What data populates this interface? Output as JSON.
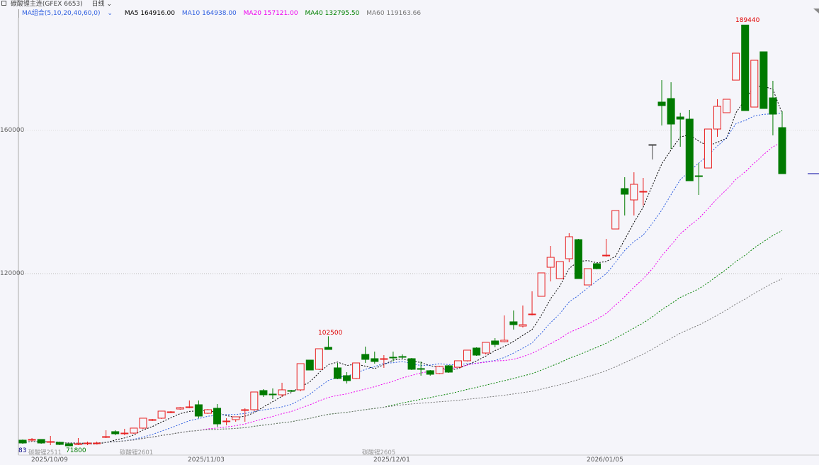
{
  "header": {
    "window_icon": "window-icon",
    "title": "碳酸锂主连(GFEX 6653)",
    "period": "日线",
    "period_dropdown_icon": "chevron-down-icon"
  },
  "indicator": {
    "label": "MA组合(5,10,20,40,60,0)",
    "items": [
      {
        "label": "MA5 164916.00",
        "color": "#000000"
      },
      {
        "label": "MA10 164938.00",
        "color": "#3060e0"
      },
      {
        "label": "MA20 157121.00",
        "color": "#ee00ee"
      },
      {
        "label": "MA40 132795.50",
        "color": "#008000"
      },
      {
        "label": "MA60 119163.66",
        "color": "#777777"
      }
    ]
  },
  "axis": {
    "y_ticks": [
      "160000",
      "120000"
    ],
    "dates": [
      "2025/10/09",
      "2025/11/03",
      "2025/12/01",
      "2026/01/05"
    ],
    "contracts": [
      "碳酸锂2511",
      "碳酸锂2601",
      "碳酸锂2605"
    ],
    "left_count": "83"
  },
  "annotations": {
    "high_label": "189440",
    "mid_high_label": "102500",
    "low_label": "71800"
  },
  "colors": {
    "up": "#e82020",
    "down": "#007a00",
    "flat": "#444444",
    "last_price": "#0000a0"
  },
  "chart_data": {
    "type": "candlestick",
    "title": "碳酸锂主连(GFEX 6653) 日线",
    "ylim": [
      70000,
      197000
    ],
    "y_ticks": [
      120000,
      160000
    ],
    "ma_periods": [
      5,
      10,
      20,
      40,
      60
    ],
    "ohlc": [
      [
        73470,
        73670,
        72480,
        72680
      ],
      [
        73470,
        74060,
        73070,
        73670
      ],
      [
        73670,
        73670,
        72480,
        72680
      ],
      [
        72880,
        74660,
        72080,
        73070
      ],
      [
        72880,
        73070,
        72080,
        72280
      ],
      [
        72480,
        72480,
        71800,
        71890
      ],
      [
        72280,
        74060,
        72080,
        72480
      ],
      [
        72480,
        73070,
        72080,
        72680
      ],
      [
        72480,
        73070,
        72280,
        72680
      ],
      [
        74260,
        76240,
        74060,
        74460
      ],
      [
        75850,
        76240,
        74860,
        75250
      ],
      [
        75250,
        76640,
        74860,
        75450
      ],
      [
        75450,
        76840,
        75250,
        76840
      ],
      [
        76840,
        79610,
        76640,
        79610
      ],
      [
        79010,
        79410,
        78820,
        79210
      ],
      [
        79610,
        81590,
        79410,
        81590
      ],
      [
        81190,
        81590,
        80990,
        81390
      ],
      [
        82180,
        82780,
        81990,
        82580
      ],
      [
        82580,
        84560,
        82380,
        82780
      ],
      [
        83370,
        84560,
        79610,
        80200
      ],
      [
        80990,
        82180,
        80800,
        81980
      ],
      [
        82380,
        83570,
        77230,
        78020
      ],
      [
        78620,
        79610,
        77630,
        78820
      ],
      [
        79210,
        80000,
        78620,
        80000
      ],
      [
        81790,
        82380,
        78620,
        81980
      ],
      [
        81980,
        86930,
        81590,
        86930
      ],
      [
        87330,
        87730,
        85550,
        86140
      ],
      [
        86340,
        87920,
        84950,
        86140
      ],
      [
        86140,
        89510,
        85550,
        87530
      ],
      [
        87330,
        87530,
        86930,
        87130
      ],
      [
        87530,
        94850,
        87130,
        94850
      ],
      [
        95840,
        95840,
        93070,
        93070
      ],
      [
        93270,
        99010,
        93070,
        99010
      ],
      [
        99410,
        102500,
        98810,
        98810
      ],
      [
        93670,
        95050,
        90500,
        90700
      ],
      [
        91490,
        92480,
        89310,
        90100
      ],
      [
        90700,
        95050,
        90500,
        95050
      ],
      [
        97430,
        99610,
        95050,
        96040
      ],
      [
        96240,
        98220,
        94850,
        95450
      ],
      [
        96040,
        97230,
        93670,
        96240
      ],
      [
        96640,
        98220,
        95450,
        96440
      ],
      [
        96830,
        97430,
        96240,
        96640
      ],
      [
        96240,
        96440,
        93070,
        93270
      ],
      [
        93470,
        95450,
        91490,
        93270
      ],
      [
        92880,
        93070,
        91490,
        91880
      ],
      [
        92080,
        94260,
        91880,
        94060
      ],
      [
        94260,
        94460,
        92280,
        92480
      ],
      [
        93860,
        95650,
        93670,
        95650
      ],
      [
        95650,
        98620,
        95450,
        98620
      ],
      [
        99210,
        99410,
        97030,
        97230
      ],
      [
        97820,
        100790,
        97430,
        100790
      ],
      [
        101190,
        101980,
        99410,
        100200
      ],
      [
        100990,
        108320,
        100790,
        101390
      ],
      [
        106540,
        109700,
        104360,
        105740
      ],
      [
        105350,
        111090,
        104950,
        105740
      ],
      [
        108520,
        115050,
        108320,
        108710
      ],
      [
        113660,
        120200,
        113660,
        120200
      ],
      [
        121780,
        127720,
        117820,
        124550
      ],
      [
        118610,
        123370,
        118610,
        123370
      ],
      [
        124160,
        131300,
        123170,
        130300
      ],
      [
        129500,
        129700,
        118610,
        118610
      ],
      [
        116830,
        121390,
        116830,
        121390
      ],
      [
        122770,
        122970,
        121190,
        121390
      ],
      [
        124950,
        129700,
        124750,
        125150
      ],
      [
        132470,
        137620,
        132470,
        137620
      ],
      [
        143760,
        146930,
        136240,
        142180
      ],
      [
        140590,
        148310,
        136240,
        144950
      ],
      [
        142770,
        146730,
        139010,
        142970
      ],
      [
        156040,
        156040,
        151880,
        156040
      ],
      [
        167920,
        174050,
        161380,
        166930
      ],
      [
        168910,
        173460,
        154850,
        161780
      ],
      [
        163760,
        164950,
        155440,
        163160
      ],
      [
        163160,
        165740,
        145940,
        145940
      ],
      [
        147320,
        150890,
        141980,
        147130
      ],
      [
        149500,
        160390,
        149500,
        160390
      ],
      [
        160390,
        168710,
        158210,
        166730
      ],
      [
        164950,
        168710,
        164950,
        168710
      ],
      [
        174050,
        181580,
        174050,
        181580
      ],
      [
        189440,
        189440,
        165540,
        165540
      ],
      [
        166530,
        179600,
        166530,
        179600
      ],
      [
        181970,
        181970,
        166130,
        166130
      ],
      [
        169100,
        173860,
        158610,
        164550
      ],
      [
        160790,
        165340,
        147920,
        147920
      ]
    ],
    "last_price": 147920
  }
}
